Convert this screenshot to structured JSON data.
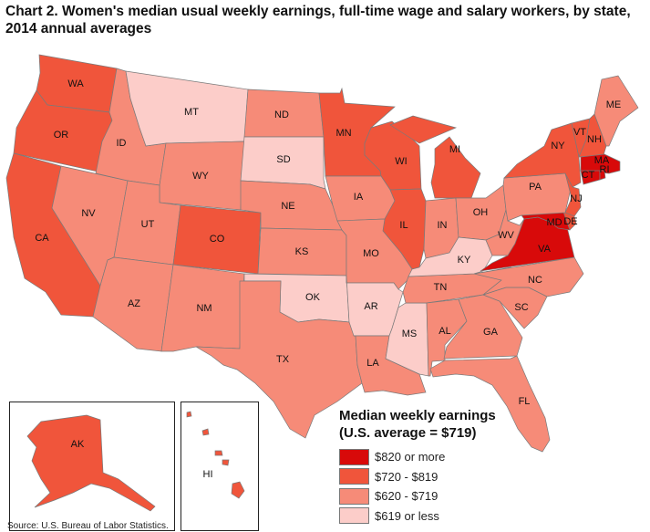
{
  "title": "Chart 2. Women's median usual weekly earnings, full-time wage and salary workers, by state, 2014 annual averages",
  "source": "Source: U.S. Bureau of Labor Statistics.",
  "legend": {
    "title_line1": "Median weekly earnings",
    "title_line2": "(U.S. average = $719)",
    "categories": [
      {
        "label": "$820 or more",
        "color": "#d80a0a"
      },
      {
        "label": "$720 - $819",
        "color": "#f0553b"
      },
      {
        "label": "$620 - $719",
        "color": "#f68b78"
      },
      {
        "label": "$619 or less",
        "color": "#fccdc9"
      }
    ]
  },
  "states": [
    {
      "abbr": "WA",
      "cat": 1
    },
    {
      "abbr": "OR",
      "cat": 1
    },
    {
      "abbr": "CA",
      "cat": 1
    },
    {
      "abbr": "NV",
      "cat": 2
    },
    {
      "abbr": "ID",
      "cat": 2
    },
    {
      "abbr": "MT",
      "cat": 3
    },
    {
      "abbr": "WY",
      "cat": 2
    },
    {
      "abbr": "UT",
      "cat": 2
    },
    {
      "abbr": "CO",
      "cat": 1
    },
    {
      "abbr": "AZ",
      "cat": 2
    },
    {
      "abbr": "NM",
      "cat": 2
    },
    {
      "abbr": "ND",
      "cat": 2
    },
    {
      "abbr": "SD",
      "cat": 3
    },
    {
      "abbr": "NE",
      "cat": 2
    },
    {
      "abbr": "KS",
      "cat": 2
    },
    {
      "abbr": "OK",
      "cat": 3
    },
    {
      "abbr": "TX",
      "cat": 2
    },
    {
      "abbr": "MN",
      "cat": 1
    },
    {
      "abbr": "WI",
      "cat": 1
    },
    {
      "abbr": "MI",
      "cat": 1
    },
    {
      "abbr": "IA",
      "cat": 2
    },
    {
      "abbr": "IL",
      "cat": 1
    },
    {
      "abbr": "IN",
      "cat": 2
    },
    {
      "abbr": "OH",
      "cat": 2
    },
    {
      "abbr": "MO",
      "cat": 2
    },
    {
      "abbr": "AR",
      "cat": 3
    },
    {
      "abbr": "LA",
      "cat": 2
    },
    {
      "abbr": "MS",
      "cat": 3
    },
    {
      "abbr": "TN",
      "cat": 2
    },
    {
      "abbr": "KY",
      "cat": 3
    },
    {
      "abbr": "AL",
      "cat": 2
    },
    {
      "abbr": "GA",
      "cat": 2
    },
    {
      "abbr": "SC",
      "cat": 2
    },
    {
      "abbr": "NC",
      "cat": 2
    },
    {
      "abbr": "FL",
      "cat": 2
    },
    {
      "abbr": "WV",
      "cat": 2
    },
    {
      "abbr": "VA",
      "cat": 0
    },
    {
      "abbr": "MD",
      "cat": 0
    },
    {
      "abbr": "DE",
      "cat": 1
    },
    {
      "abbr": "PA",
      "cat": 2
    },
    {
      "abbr": "NJ",
      "cat": 1
    },
    {
      "abbr": "NY",
      "cat": 1
    },
    {
      "abbr": "VT",
      "cat": 1
    },
    {
      "abbr": "NH",
      "cat": 1
    },
    {
      "abbr": "ME",
      "cat": 2
    },
    {
      "abbr": "MA",
      "cat": 0
    },
    {
      "abbr": "CT",
      "cat": 0
    },
    {
      "abbr": "RI",
      "cat": 0
    },
    {
      "abbr": "AK",
      "cat": 1
    },
    {
      "abbr": "HI",
      "cat": 1
    }
  ]
}
